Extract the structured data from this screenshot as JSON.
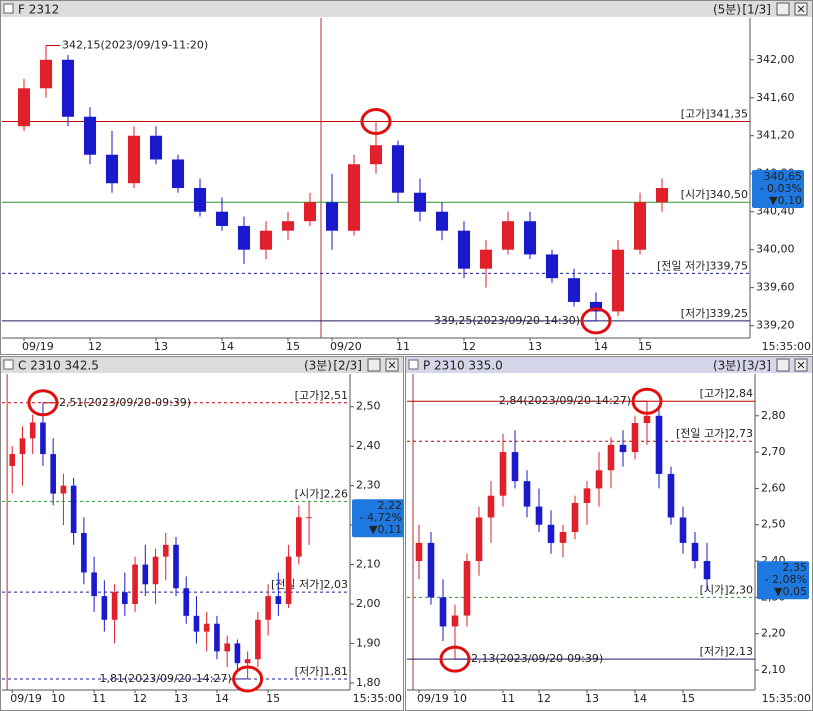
{
  "chart_data": [
    {
      "type": "candlestick",
      "title": "F 2312",
      "interval": "(5분)",
      "page": "[1/3]",
      "time_label": "15:35:00",
      "categories": [
        "09/19",
        null,
        null,
        "12",
        null,
        null,
        "13",
        null,
        null,
        "14",
        null,
        null,
        "15",
        null,
        "09/20",
        null,
        null,
        "11",
        null,
        null,
        "12",
        null,
        null,
        "13",
        null,
        null,
        "14",
        null,
        "15",
        null
      ],
      "open": [
        341.3,
        341.7,
        342.0,
        341.4,
        341.0,
        340.7,
        341.2,
        340.95,
        340.65,
        340.4,
        340.25,
        340.0,
        340.2,
        340.3,
        340.5,
        340.2,
        340.9,
        341.1,
        340.6,
        340.4,
        340.2,
        339.8,
        340.0,
        340.3,
        339.95,
        339.7,
        339.45,
        339.35,
        340.0,
        340.5
      ],
      "high": [
        341.8,
        342.15,
        342.05,
        341.5,
        341.25,
        341.3,
        341.3,
        341.0,
        340.75,
        340.55,
        340.35,
        340.3,
        340.4,
        340.6,
        340.8,
        341.0,
        341.35,
        341.15,
        340.75,
        340.5,
        340.3,
        340.1,
        340.4,
        340.4,
        340.0,
        339.8,
        339.55,
        340.1,
        340.6,
        340.75
      ],
      "low": [
        341.25,
        341.6,
        341.3,
        340.9,
        340.6,
        340.65,
        340.9,
        340.6,
        340.35,
        340.2,
        339.85,
        339.9,
        340.1,
        340.25,
        340.0,
        340.15,
        340.8,
        340.5,
        340.3,
        340.1,
        339.7,
        339.6,
        339.95,
        339.9,
        339.65,
        339.4,
        339.25,
        339.3,
        339.95,
        340.4
      ],
      "close": [
        341.7,
        342.0,
        341.4,
        341.0,
        340.7,
        341.2,
        340.95,
        340.65,
        340.4,
        340.25,
        340.0,
        340.2,
        340.3,
        340.5,
        340.2,
        340.9,
        341.1,
        340.6,
        340.4,
        340.2,
        339.8,
        340.0,
        340.3,
        339.95,
        339.7,
        339.45,
        339.35,
        340.0,
        340.5,
        340.65
      ],
      "up_color": "#e0202a",
      "down_color": "#1a1acc",
      "ylim": [
        339.07,
        342.44
      ],
      "yticks": [
        {
          "value": 339.2,
          "label": "339,20"
        },
        {
          "value": 339.6,
          "label": "339,60"
        },
        {
          "value": 340.0,
          "label": "340,00"
        },
        {
          "value": 340.4,
          "label": "340,40"
        },
        {
          "value": 340.8,
          "label": "340,80"
        },
        {
          "value": 341.2,
          "label": "341,20"
        },
        {
          "value": 341.6,
          "label": "341,60"
        },
        {
          "value": 342.0,
          "label": "342,00"
        }
      ],
      "levels": [
        {
          "value": 341.35,
          "label": "[고가]341,35",
          "color": "#c00000",
          "dashed": false
        },
        {
          "value": 340.5,
          "label": "[시가]340,50",
          "color": "#2a9a2a",
          "dashed": false
        },
        {
          "value": 339.75,
          "label": "[전일 저가]339,75",
          "color": "#1a1a9a",
          "dashed": true
        },
        {
          "value": 339.25,
          "label": "[저가]339,25",
          "color": "#1a1a6a",
          "dashed": false
        }
      ],
      "annotations": [
        {
          "text": "342,15(2023/09/19-11:20)",
          "value": 342.15,
          "color": "#c00000"
        },
        {
          "text": "339,25(2023/09/20-14:30)",
          "value": 339.25,
          "color": "#1a1a9a"
        }
      ],
      "last": {
        "value": 340.65,
        "label": "340,65",
        "change": "- 0,03%",
        "diff": "▼0,10"
      }
    },
    {
      "type": "candlestick",
      "title": "C 2310 342.5",
      "interval": "(3분)",
      "page": "[2/3]",
      "time_label": "15:35:00",
      "categories": [
        "09/19",
        null,
        null,
        null,
        "10",
        null,
        null,
        null,
        "11",
        null,
        null,
        null,
        "12",
        null,
        null,
        null,
        "13",
        null,
        null,
        null,
        "14",
        null,
        null,
        null,
        null,
        "15",
        null,
        null,
        null,
        null
      ],
      "open": [
        2.35,
        2.38,
        2.42,
        2.46,
        2.38,
        2.28,
        2.3,
        2.18,
        2.08,
        2.02,
        1.96,
        2.03,
        2.0,
        2.1,
        2.05,
        2.12,
        2.15,
        2.04,
        1.97,
        1.93,
        1.95,
        1.88,
        1.9,
        1.85,
        1.86,
        1.96,
        2.02,
        2.0,
        2.12,
        2.22
      ],
      "high": [
        2.4,
        2.45,
        2.48,
        2.51,
        2.42,
        2.33,
        2.32,
        2.22,
        2.12,
        2.06,
        2.05,
        2.08,
        2.12,
        2.15,
        2.14,
        2.18,
        2.17,
        2.07,
        2.02,
        1.98,
        1.97,
        1.92,
        1.91,
        1.88,
        1.98,
        2.05,
        2.08,
        2.15,
        2.25,
        2.26
      ],
      "low": [
        2.28,
        2.3,
        2.38,
        2.35,
        2.25,
        2.2,
        2.15,
        2.05,
        1.98,
        1.93,
        1.9,
        1.97,
        1.98,
        2.02,
        2.0,
        2.06,
        2.02,
        1.95,
        1.9,
        1.88,
        1.86,
        1.84,
        1.83,
        1.81,
        1.84,
        1.92,
        1.97,
        1.99,
        2.1,
        2.15
      ],
      "close": [
        2.38,
        2.42,
        2.46,
        2.38,
        2.28,
        2.3,
        2.18,
        2.08,
        2.02,
        1.96,
        2.03,
        2.0,
        2.1,
        2.05,
        2.12,
        2.15,
        2.04,
        1.97,
        1.93,
        1.95,
        1.88,
        1.9,
        1.85,
        1.86,
        1.96,
        2.02,
        2.0,
        2.12,
        2.22,
        2.22
      ],
      "up_color": "#e0202a",
      "down_color": "#1a1acc",
      "ylim": [
        1.782,
        2.583
      ],
      "yticks": [
        {
          "value": 1.8,
          "label": "1,80"
        },
        {
          "value": 1.9,
          "label": "1,90"
        },
        {
          "value": 2.0,
          "label": "2,00"
        },
        {
          "value": 2.1,
          "label": "2,10"
        },
        {
          "value": 2.2,
          "label": "2,20"
        },
        {
          "value": 2.3,
          "label": "2,30"
        },
        {
          "value": 2.4,
          "label": "2,40"
        },
        {
          "value": 2.5,
          "label": "2,50"
        }
      ],
      "levels": [
        {
          "value": 2.51,
          "label": "[고가]2,51",
          "color": "#c00000",
          "dashed": true
        },
        {
          "value": 2.26,
          "label": "[시가]2,26",
          "color": "#2a9a2a",
          "dashed": true
        },
        {
          "value": 2.03,
          "label": "[전일 저가]2,03",
          "color": "#1a1a9a",
          "dashed": true
        },
        {
          "value": 1.81,
          "label": "[저가]1,81",
          "color": "#1a1a9a",
          "dashed": true
        }
      ],
      "annotations": [
        {
          "text": "2,51(2023/09/20-09:39)",
          "value": 2.51,
          "color": "#c00000"
        },
        {
          "text": "1,81(2023/09/20-14:27)",
          "value": 1.81,
          "color": "#1a1a9a"
        }
      ],
      "last": {
        "value": 2.22,
        "label": "2,22",
        "change": "- 4,72%",
        "diff": "▼0,11"
      }
    },
    {
      "type": "candlestick",
      "title": "P 2310 335.0",
      "interval": "(3분)",
      "page": "[3/3]",
      "time_label": "15:35:00",
      "categories": [
        "09/19",
        null,
        null,
        "10",
        null,
        null,
        null,
        "11",
        null,
        null,
        "12",
        null,
        null,
        null,
        "13",
        null,
        null,
        null,
        "14",
        null,
        null,
        null,
        "15",
        null,
        null
      ],
      "open": [
        2.4,
        2.45,
        2.3,
        2.22,
        2.25,
        2.4,
        2.52,
        2.58,
        2.7,
        2.62,
        2.55,
        2.5,
        2.45,
        2.48,
        2.56,
        2.6,
        2.65,
        2.72,
        2.7,
        2.78,
        2.8,
        2.64,
        2.52,
        2.45,
        2.4
      ],
      "high": [
        2.5,
        2.48,
        2.35,
        2.28,
        2.42,
        2.55,
        2.62,
        2.75,
        2.76,
        2.65,
        2.6,
        2.54,
        2.5,
        2.58,
        2.62,
        2.7,
        2.74,
        2.76,
        2.8,
        2.84,
        2.82,
        2.66,
        2.55,
        2.48,
        2.45
      ],
      "low": [
        2.35,
        2.28,
        2.18,
        2.13,
        2.22,
        2.36,
        2.45,
        2.55,
        2.6,
        2.52,
        2.48,
        2.42,
        2.41,
        2.46,
        2.5,
        2.55,
        2.6,
        2.66,
        2.68,
        2.72,
        2.6,
        2.5,
        2.42,
        2.38,
        2.32
      ],
      "close": [
        2.45,
        2.3,
        2.22,
        2.25,
        2.4,
        2.52,
        2.58,
        2.7,
        2.62,
        2.55,
        2.5,
        2.45,
        2.48,
        2.56,
        2.6,
        2.65,
        2.72,
        2.7,
        2.78,
        2.8,
        2.64,
        2.52,
        2.45,
        2.4,
        2.35
      ],
      "up_color": "#e0202a",
      "down_color": "#1a1acc",
      "ylim": [
        2.045,
        2.915
      ],
      "yticks": [
        {
          "value": 2.1,
          "label": "2,10"
        },
        {
          "value": 2.2,
          "label": "2,20"
        },
        {
          "value": 2.3,
          "label": "2,30"
        },
        {
          "value": 2.4,
          "label": "2,40"
        },
        {
          "value": 2.5,
          "label": "2,50"
        },
        {
          "value": 2.6,
          "label": "2,60"
        },
        {
          "value": 2.7,
          "label": "2,70"
        },
        {
          "value": 2.8,
          "label": "2,80"
        }
      ],
      "levels": [
        {
          "value": 2.84,
          "label": "[고가]2,84",
          "color": "#c00000",
          "dashed": false
        },
        {
          "value": 2.73,
          "label": "[전일 고가]2,73",
          "color": "#c00000",
          "dashed": true
        },
        {
          "value": 2.3,
          "label": "[시가]2,30",
          "color": "#2a9a2a",
          "dashed": true
        },
        {
          "value": 2.13,
          "label": "[저가]2,13",
          "color": "#1a1a6a",
          "dashed": false
        }
      ],
      "annotations": [
        {
          "text": "2,84(2023/09/20-14:27)",
          "value": 2.84,
          "color": "#c00000"
        },
        {
          "text": "2,13(2023/09/20-09:39)",
          "value": 2.13,
          "color": "#1a1a9a"
        }
      ],
      "last": {
        "value": 2.35,
        "label": "2,35",
        "change": "- 2,08%",
        "diff": "▼0,05"
      }
    }
  ]
}
